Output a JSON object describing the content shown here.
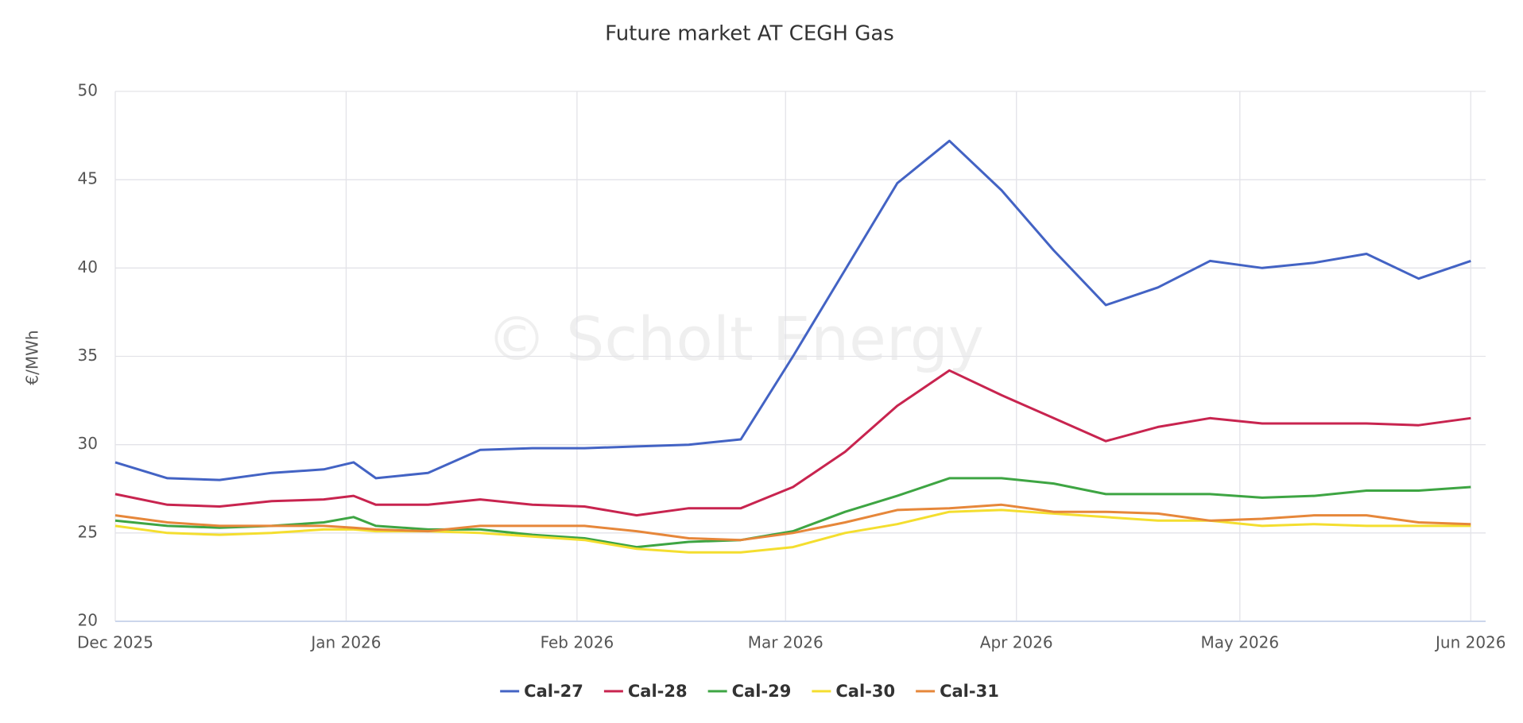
{
  "chart_data": {
    "type": "line",
    "title": "Future market AT CEGH Gas",
    "y_label": "€/MWh",
    "watermark": "© Scholt Energy",
    "x": [
      "2025-12-01",
      "2025-12-08",
      "2025-12-15",
      "2025-12-22",
      "2025-12-29",
      "2026-01-02",
      "2026-01-05",
      "2026-01-12",
      "2026-01-19",
      "2026-01-26",
      "2026-02-02",
      "2026-02-09",
      "2026-02-16",
      "2026-02-23",
      "2026-03-02",
      "2026-03-09",
      "2026-03-16",
      "2026-03-23",
      "2026-03-30",
      "2026-04-06",
      "2026-04-13",
      "2026-04-20",
      "2026-04-27",
      "2026-05-04",
      "2026-05-11",
      "2026-05-18",
      "2026-05-25",
      "2026-06-01"
    ],
    "xlim": [
      "2025-12-01",
      "2026-06-03"
    ],
    "xticks": [
      {
        "value": "2025-12-01",
        "label": "Dec 2025"
      },
      {
        "value": "2026-01-01",
        "label": "Jan 2026"
      },
      {
        "value": "2026-02-01",
        "label": "Feb 2026"
      },
      {
        "value": "2026-03-01",
        "label": "Mar 2026"
      },
      {
        "value": "2026-04-01",
        "label": "Apr 2026"
      },
      {
        "value": "2026-05-01",
        "label": "May 2026"
      },
      {
        "value": "2026-06-01",
        "label": "Jun 2026"
      }
    ],
    "ylim": [
      20,
      50
    ],
    "yticks": [
      20,
      25,
      30,
      35,
      40,
      45,
      50
    ],
    "grid": true,
    "series": [
      {
        "name": "Cal-27",
        "color": "#4363c4",
        "values": [
          29.0,
          28.1,
          28.0,
          28.4,
          28.6,
          29.0,
          28.1,
          28.4,
          29.7,
          29.8,
          29.8,
          29.9,
          30.0,
          30.3,
          35.0,
          39.9,
          44.8,
          47.2,
          44.4,
          41.0,
          37.9,
          38.9,
          40.4,
          40.0,
          40.3,
          40.8,
          39.4,
          40.4
        ]
      },
      {
        "name": "Cal-28",
        "color": "#c8244f",
        "values": [
          27.2,
          26.6,
          26.5,
          26.8,
          26.9,
          27.1,
          26.6,
          26.6,
          26.9,
          26.6,
          26.5,
          26.0,
          26.4,
          26.4,
          27.6,
          29.6,
          32.2,
          34.2,
          32.8,
          31.5,
          30.2,
          31.0,
          31.5,
          31.2,
          31.2,
          31.2,
          31.1,
          31.5
        ]
      },
      {
        "name": "Cal-29",
        "color": "#3ea543",
        "values": [
          25.7,
          25.4,
          25.3,
          25.4,
          25.6,
          25.9,
          25.4,
          25.2,
          25.2,
          24.9,
          24.7,
          24.2,
          24.5,
          24.6,
          25.1,
          26.2,
          27.1,
          28.1,
          28.1,
          27.8,
          27.2,
          27.2,
          27.2,
          27.0,
          27.1,
          27.4,
          27.4,
          27.6
        ]
      },
      {
        "name": "Cal-30",
        "color": "#f4de2f",
        "values": [
          25.4,
          25.0,
          24.9,
          25.0,
          25.2,
          25.2,
          25.1,
          25.1,
          25.0,
          24.8,
          24.6,
          24.1,
          23.9,
          23.9,
          24.2,
          25.0,
          25.5,
          26.2,
          26.3,
          26.1,
          25.9,
          25.7,
          25.7,
          25.4,
          25.5,
          25.4,
          25.4,
          25.4
        ]
      },
      {
        "name": "Cal-31",
        "color": "#e6873a",
        "values": [
          26.0,
          25.6,
          25.4,
          25.4,
          25.4,
          25.3,
          25.2,
          25.1,
          25.4,
          25.4,
          25.4,
          25.1,
          24.7,
          24.6,
          25.0,
          25.6,
          26.3,
          26.4,
          26.6,
          26.2,
          26.2,
          26.1,
          25.7,
          25.8,
          26.0,
          26.0,
          25.6,
          25.5
        ]
      }
    ]
  }
}
